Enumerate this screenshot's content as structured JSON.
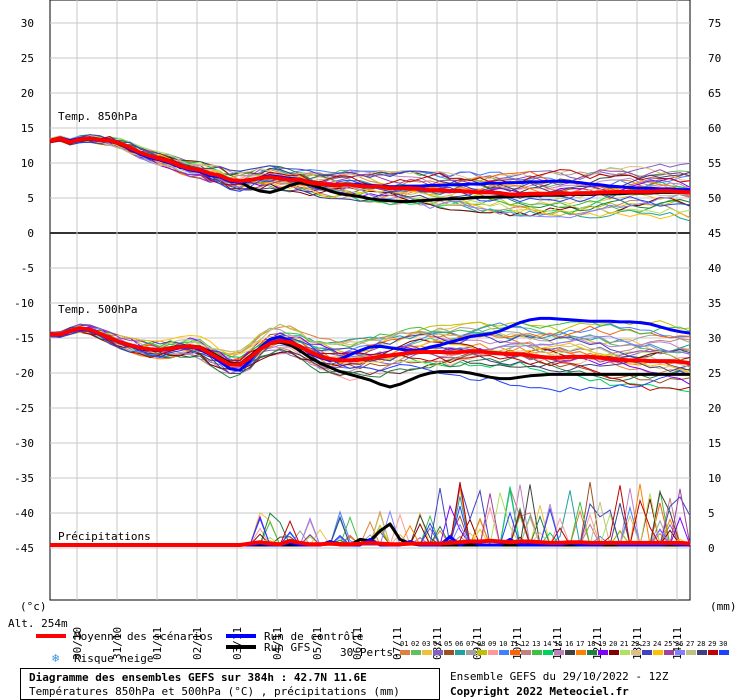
{
  "chart_data": {
    "type": "line",
    "title": "Diagramme des ensembles GEFS sur 384h : 42.7N 11.6E",
    "subtitle": "Températures 850hPa et 500hPa (°C) , précipitations (mm)",
    "left_unit": "(°c)",
    "right_unit": "(mm)",
    "altitude": "Alt. 254m",
    "left_ticks": [
      "30",
      "25",
      "20",
      "15",
      "10",
      "5",
      "0",
      "-5",
      "-10",
      "-15",
      "-20",
      "-25",
      "-30",
      "-35",
      "-40",
      "-45"
    ],
    "right_ticks": [
      "75",
      "70",
      "65",
      "60",
      "55",
      "50",
      "45",
      "40",
      "35",
      "30",
      "25",
      "20",
      "15",
      "10",
      "5",
      "0"
    ],
    "x_ticks": [
      "30/10",
      "31/10",
      "01/11",
      "02/11",
      "03/11",
      "04/11",
      "05/11",
      "06/11",
      "07/11",
      "08/11",
      "09/11",
      "10/11",
      "11/11",
      "12/11",
      "13/11",
      "14/11"
    ],
    "panels": [
      {
        "name": "Temp. 850hPa",
        "ylim": [
          0,
          30
        ],
        "x": [
          0,
          0.25,
          0.5,
          0.75,
          1,
          1.25,
          1.5,
          1.75,
          2,
          2.25,
          2.5,
          2.75,
          3,
          3.25,
          3.5,
          3.75,
          4,
          4.25,
          4.5,
          4.75,
          5,
          5.25,
          5.5,
          5.75,
          6,
          6.25,
          6.5,
          6.75,
          7,
          7.25,
          7.5,
          7.75,
          8,
          8.25,
          8.5,
          8.75,
          9,
          9.25,
          9.5,
          9.75,
          10,
          10.25,
          10.5,
          10.75,
          11,
          11.25,
          11.5,
          11.75,
          12,
          12.25,
          12.5,
          12.75,
          13,
          13.25,
          13.5,
          13.75,
          14,
          14.25,
          14.5,
          14.75,
          15,
          15.25,
          15.5,
          15.75,
          16
        ],
        "series": [
          {
            "name": "Moyenne des scénarios",
            "color": "#ff0000",
            "values": [
              13.2,
              13.5,
              13.0,
              13.4,
              13.5,
              13.3,
              13.2,
              12.8,
              12.2,
              11.5,
              11.0,
              10.6,
              10.2,
              9.6,
              9.2,
              9.0,
              8.5,
              8.2,
              7.6,
              7.4,
              7.6,
              7.8,
              8.0,
              7.8,
              7.6,
              7.6,
              7.2,
              7.0,
              6.9,
              6.9,
              6.9,
              6.7,
              6.6,
              6.6,
              6.4,
              6.4,
              6.4,
              6.3,
              6.1,
              6.1,
              6.0,
              6.0,
              5.9,
              5.8,
              5.8,
              5.7,
              5.5,
              5.5,
              5.6,
              5.6,
              5.6,
              5.7,
              5.6,
              5.7,
              5.7,
              5.8,
              5.8,
              5.9,
              5.9,
              5.9,
              5.9,
              6.0,
              6.0,
              5.9,
              5.8
            ]
          },
          {
            "name": "Run de contrôle",
            "color": "#0000ff",
            "values": [
              13.2,
              13.6,
              13.2,
              13.5,
              13.6,
              13.4,
              13.3,
              12.9,
              12.0,
              11.3,
              10.8,
              10.4,
              10.0,
              9.4,
              9.0,
              8.8,
              8.2,
              8.0,
              7.4,
              7.2,
              7.5,
              7.9,
              8.2,
              8.0,
              7.8,
              7.7,
              7.3,
              7.0,
              6.8,
              6.8,
              7.0,
              6.9,
              6.8,
              6.7,
              6.6,
              6.6,
              6.7,
              6.7,
              6.8,
              6.8,
              6.9,
              6.9,
              7.0,
              7.0,
              7.1,
              7.1,
              7.2,
              7.2,
              7.3,
              7.3,
              7.4,
              7.4,
              7.3,
              7.2,
              7.0,
              6.9,
              6.7,
              6.6,
              6.5,
              6.4,
              6.4,
              6.3,
              6.3,
              6.2,
              6.2
            ]
          },
          {
            "name": "Run GFS",
            "color": "#000000",
            "values": [
              13.2,
              13.6,
              13.1,
              13.3,
              13.4,
              13.3,
              13.1,
              12.7,
              12.1,
              11.4,
              10.9,
              10.5,
              10.1,
              9.5,
              9.1,
              8.8,
              8.3,
              8.0,
              7.6,
              7.3,
              6.5,
              6.0,
              5.8,
              6.2,
              6.8,
              7.2,
              6.9,
              6.5,
              6.0,
              5.6,
              5.4,
              5.2,
              4.9,
              4.7,
              4.6,
              4.5,
              4.5,
              4.6,
              4.7,
              4.8,
              4.9,
              4.9,
              5.0,
              5.1,
              5.1,
              5.2,
              5.2,
              5.3,
              5.3,
              5.4,
              5.4,
              5.4,
              5.5,
              5.5,
              5.5,
              5.6,
              5.6,
              5.6,
              5.7,
              5.7,
              5.7,
              5.8,
              5.8,
              5.8,
              5.8
            ]
          }
        ]
      },
      {
        "name": "Temp. 500hPa",
        "ylim": [
          -30,
          -10
        ],
        "x": [
          0,
          0.25,
          0.5,
          0.75,
          1,
          1.25,
          1.5,
          1.75,
          2,
          2.25,
          2.5,
          2.75,
          3,
          3.25,
          3.5,
          3.75,
          4,
          4.25,
          4.5,
          4.75,
          5,
          5.25,
          5.5,
          5.75,
          6,
          6.25,
          6.5,
          6.75,
          7,
          7.25,
          7.5,
          7.75,
          8,
          8.25,
          8.5,
          8.75,
          9,
          9.25,
          9.5,
          9.75,
          10,
          10.25,
          10.5,
          10.75,
          11,
          11.25,
          11.5,
          11.75,
          12,
          12.25,
          12.5,
          12.75,
          13,
          13.25,
          13.5,
          13.75,
          14,
          14.25,
          14.5,
          14.75,
          15,
          15.25,
          15.5,
          15.75,
          16
        ],
        "series": [
          {
            "name": "Moyenne des scénarios",
            "color": "#ff0000",
            "values": [
              -14.5,
              -14.5,
              -14.0,
              -13.6,
              -13.8,
              -14.4,
              -15.0,
              -15.6,
              -16.0,
              -16.4,
              -16.6,
              -16.7,
              -16.5,
              -16.3,
              -16.2,
              -16.4,
              -17.2,
              -18.0,
              -18.8,
              -18.8,
              -17.8,
              -16.6,
              -15.8,
              -15.4,
              -15.6,
              -16.2,
              -17.0,
              -17.6,
              -18.0,
              -18.2,
              -18.2,
              -18.1,
              -17.9,
              -17.7,
              -17.5,
              -17.3,
              -17.1,
              -17.0,
              -17.0,
              -17.0,
              -17.1,
              -17.0,
              -16.9,
              -16.9,
              -17.1,
              -17.2,
              -17.3,
              -17.3,
              -17.5,
              -17.7,
              -17.8,
              -17.8,
              -17.7,
              -17.7,
              -17.7,
              -17.8,
              -18.0,
              -18.1,
              -18.2,
              -18.2,
              -18.3,
              -18.3,
              -18.3,
              -18.4,
              -18.6
            ]
          },
          {
            "name": "Run de contrôle",
            "color": "#0000ff",
            "values": [
              -14.5,
              -14.6,
              -14.1,
              -13.7,
              -13.9,
              -14.5,
              -15.1,
              -15.7,
              -16.1,
              -16.5,
              -16.7,
              -16.8,
              -16.6,
              -16.4,
              -16.3,
              -16.6,
              -17.4,
              -18.4,
              -19.4,
              -19.6,
              -18.2,
              -16.4,
              -15.2,
              -14.8,
              -15.4,
              -16.2,
              -17.2,
              -17.8,
              -18.2,
              -18.0,
              -17.4,
              -16.8,
              -16.3,
              -16.2,
              -16.4,
              -16.6,
              -16.8,
              -16.7,
              -16.3,
              -16.0,
              -15.6,
              -15.2,
              -14.8,
              -14.6,
              -14.4,
              -14.0,
              -13.4,
              -12.8,
              -12.4,
              -12.2,
              -12.2,
              -12.3,
              -12.4,
              -12.5,
              -12.6,
              -12.6,
              -12.6,
              -12.7,
              -12.7,
              -12.8,
              -13.0,
              -13.4,
              -13.8,
              -14.1,
              -14.3
            ]
          },
          {
            "name": "Run GFS",
            "color": "#000000",
            "values": [
              -14.5,
              -14.6,
              -14.0,
              -13.7,
              -13.9,
              -14.5,
              -15.0,
              -15.6,
              -16.0,
              -16.4,
              -16.6,
              -16.7,
              -16.4,
              -16.2,
              -16.1,
              -16.3,
              -17.0,
              -17.8,
              -18.6,
              -18.7,
              -17.6,
              -16.4,
              -15.8,
              -15.6,
              -16.0,
              -16.8,
              -17.8,
              -18.6,
              -19.2,
              -19.8,
              -20.2,
              -20.6,
              -21.0,
              -21.6,
              -22.0,
              -21.6,
              -21.0,
              -20.4,
              -20.0,
              -19.8,
              -19.8,
              -19.8,
              -20.0,
              -20.3,
              -20.6,
              -20.8,
              -20.8,
              -20.6,
              -20.4,
              -20.3,
              -20.2,
              -20.2,
              -20.2,
              -20.2,
              -20.2,
              -20.2,
              -20.2,
              -20.2,
              -20.2,
              -20.2,
              -20.2,
              -20.2,
              -20.2,
              -20.2,
              -20.2
            ]
          }
        ]
      },
      {
        "name": "Précipitations",
        "ylim": [
          0,
          10
        ],
        "x": [
          0,
          0.25,
          0.5,
          0.75,
          1,
          1.25,
          1.5,
          1.75,
          2,
          2.25,
          2.5,
          2.75,
          3,
          3.25,
          3.5,
          3.75,
          4,
          4.25,
          4.5,
          4.75,
          5,
          5.25,
          5.5,
          5.75,
          6,
          6.25,
          6.5,
          6.75,
          7,
          7.25,
          7.5,
          7.75,
          8,
          8.25,
          8.5,
          8.75,
          9,
          9.25,
          9.5,
          9.75,
          10,
          10.25,
          10.5,
          10.75,
          11,
          11.25,
          11.5,
          11.75,
          12,
          12.25,
          12.5,
          12.75,
          13,
          13.25,
          13.5,
          13.75,
          14,
          14.25,
          14.5,
          14.75,
          15,
          15.25,
          15.5,
          15.75,
          16
        ],
        "series": [
          {
            "name": "Moyenne des scénarios",
            "color": "#ff0000",
            "values": [
              0,
              0,
              0,
              0,
              0,
              0,
              0,
              0,
              0,
              0,
              0,
              0,
              0,
              0,
              0,
              0,
              0,
              0,
              0,
              0,
              0.2,
              0.4,
              0.2,
              0.1,
              0.6,
              0.3,
              0.1,
              0.1,
              0.2,
              0.1,
              0.1,
              0.2,
              0.3,
              0.2,
              0.1,
              0.1,
              0.2,
              0.2,
              0.2,
              0.2,
              0.3,
              0.4,
              0.5,
              0.5,
              0.6,
              0.5,
              0.4,
              0.5,
              0.5,
              0.4,
              0.3,
              0.3,
              0.4,
              0.4,
              0.3,
              0.3,
              0.3,
              0.3,
              0.3,
              0.3,
              0.3,
              0.3,
              0.3,
              0.3,
              0.2
            ]
          },
          {
            "name": "Run de contrôle",
            "color": "#0000ff",
            "values": [
              0,
              0,
              0,
              0,
              0,
              0,
              0,
              0,
              0,
              0,
              0,
              0,
              0,
              0,
              0,
              0,
              0,
              0,
              0,
              0,
              0,
              0.2,
              0,
              0,
              0.3,
              0,
              0,
              0,
              0.5,
              0,
              0,
              0,
              0.8,
              0,
              0,
              0,
              0.5,
              0,
              0,
              0,
              1.2,
              0,
              0.6,
              0,
              0,
              0,
              0.8,
              0,
              0,
              0,
              0,
              0,
              0.3,
              0,
              0,
              0,
              0.4,
              0,
              0,
              0,
              0,
              0,
              0.2,
              0,
              0
            ]
          },
          {
            "name": "Run GFS",
            "color": "#000000",
            "values": [
              0,
              0,
              0,
              0,
              0,
              0,
              0,
              0,
              0,
              0,
              0,
              0,
              0,
              0,
              0,
              0,
              0,
              0,
              0,
              0,
              0,
              0,
              0,
              0,
              0,
              0,
              0,
              0,
              0.4,
              0.2,
              0,
              0.8,
              0.6,
              2.0,
              3.0,
              0.8,
              0.2,
              0,
              0,
              0,
              0,
              0,
              0,
              0,
              0,
              0,
              0,
              0,
              0,
              0,
              0,
              0,
              0,
              0,
              0,
              0,
              0,
              0,
              0,
              0,
              0,
              0,
              0,
              0,
              0
            ]
          }
        ]
      }
    ],
    "perturbations": {
      "count": 30,
      "labels": [
        "01",
        "02",
        "03",
        "04",
        "05",
        "06",
        "07",
        "08",
        "09",
        "10",
        "11",
        "12",
        "13",
        "14",
        "15",
        "16",
        "17",
        "18",
        "19",
        "20",
        "21",
        "22",
        "23",
        "24",
        "25",
        "26",
        "27",
        "28",
        "29",
        "30"
      ],
      "colors": [
        "#e08040",
        "#60c060",
        "#f0c040",
        "#8060c0",
        "#a05020",
        "#20a0a0",
        "#a0a0a0",
        "#c0c000",
        "#ff9999",
        "#4080ff",
        "#ff6000",
        "#c08080",
        "#40c040",
        "#00d060",
        "#c080c0",
        "#404040",
        "#ff8000",
        "#208040",
        "#8000ff",
        "#800000",
        "#b0e060",
        "#e0c080",
        "#4040c0",
        "#ffc000",
        "#a040a0",
        "#8080ff",
        "#c0c080",
        "#404080",
        "#c00000",
        "#2040ff"
      ]
    },
    "legend": {
      "mean": "Moyenne des scénarios",
      "control": "Run de contrôle",
      "gfs": "Run GFS",
      "snow": "Risque neige",
      "perts": "30 Perts."
    },
    "footer": {
      "line1": "Diagramme des ensembles GEFS sur 384h : 42.7N 11.6E",
      "line2": "Températures 850hPa et 500hPa (°C) , précipitations (mm)",
      "ensemble": "Ensemble GEFS du 29/10/2022 - 12Z",
      "copyright": "Copyright 2022 Meteociel.fr"
    }
  }
}
